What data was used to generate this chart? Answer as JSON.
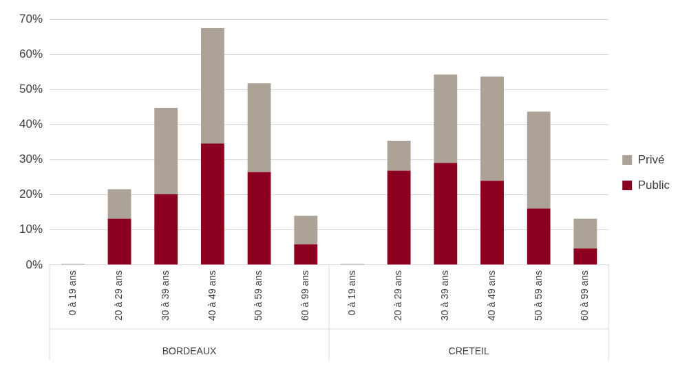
{
  "chart_data": {
    "type": "bar",
    "stacked": true,
    "categories": [
      "0 à 19 ans",
      "20 à 29 ans",
      "30 à 39 ans",
      "40 à 49 ans",
      "50 à 59 ans",
      "60 à 99 ans",
      "0 à 19 ans",
      "20 à 29 ans",
      "30 à 39 ans",
      "40 à 49 ans",
      "50 à 59 ans",
      "60 à 99 ans"
    ],
    "series": [
      {
        "name": "Public",
        "color": "#8c0020",
        "values": [
          0,
          13.2,
          20.2,
          34.6,
          26.5,
          5.9,
          0,
          26.9,
          29.1,
          24.0,
          16.1,
          4.7
        ]
      },
      {
        "name": "Privé",
        "color": "#aca295",
        "values": [
          0.3,
          8.4,
          24.6,
          32.9,
          25.3,
          8.1,
          0.3,
          8.5,
          25.2,
          29.7,
          27.6,
          8.5
        ]
      }
    ],
    "annotations": [
      "BORDEAUX",
      "CRETEIL"
    ],
    "ylim": [
      0,
      70
    ],
    "yticks": [
      {
        "value": 0,
        "label": "0%"
      },
      {
        "value": 10,
        "label": "10%"
      },
      {
        "value": 20,
        "label": "20%"
      },
      {
        "value": 30,
        "label": "30%"
      },
      {
        "value": 40,
        "label": "40%"
      },
      {
        "value": 50,
        "label": "50%"
      },
      {
        "value": 60,
        "label": "60%"
      },
      {
        "value": 70,
        "label": "70%"
      }
    ],
    "grid": "y",
    "legend": "right"
  }
}
